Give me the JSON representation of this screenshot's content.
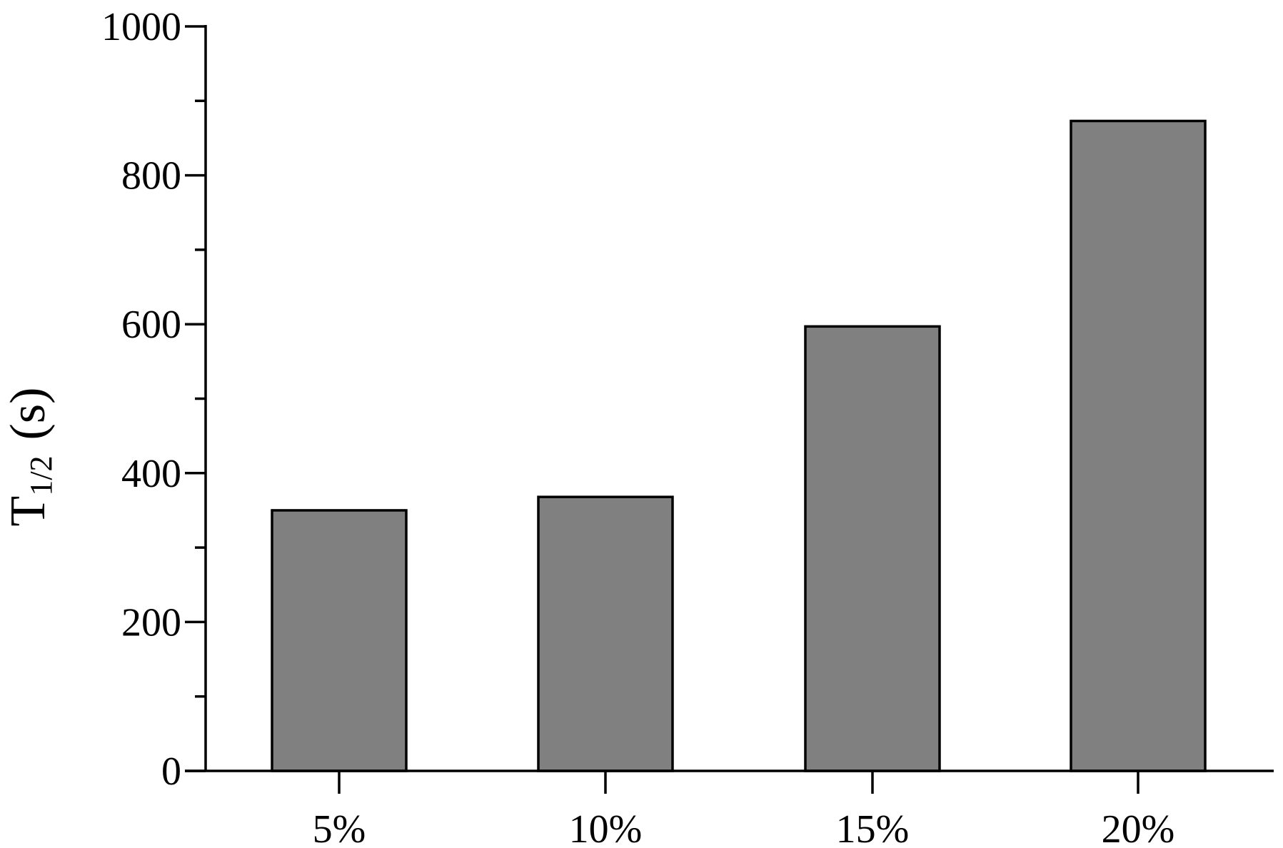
{
  "chart_data": {
    "type": "bar",
    "ylabel": "T",
    "ylabel_sub": "1/2",
    "ylabel_unit": "(s)",
    "categories": [
      "5%",
      "10%",
      "15%",
      "20%"
    ],
    "values": [
      350,
      368,
      597,
      873
    ],
    "color": "#808080",
    "ylim": [
      0,
      1000
    ],
    "yticks": [
      0,
      200,
      400,
      600,
      800,
      1000
    ],
    "yminor_ticks": [
      100,
      300,
      500,
      700,
      900
    ],
    "grid": false
  }
}
